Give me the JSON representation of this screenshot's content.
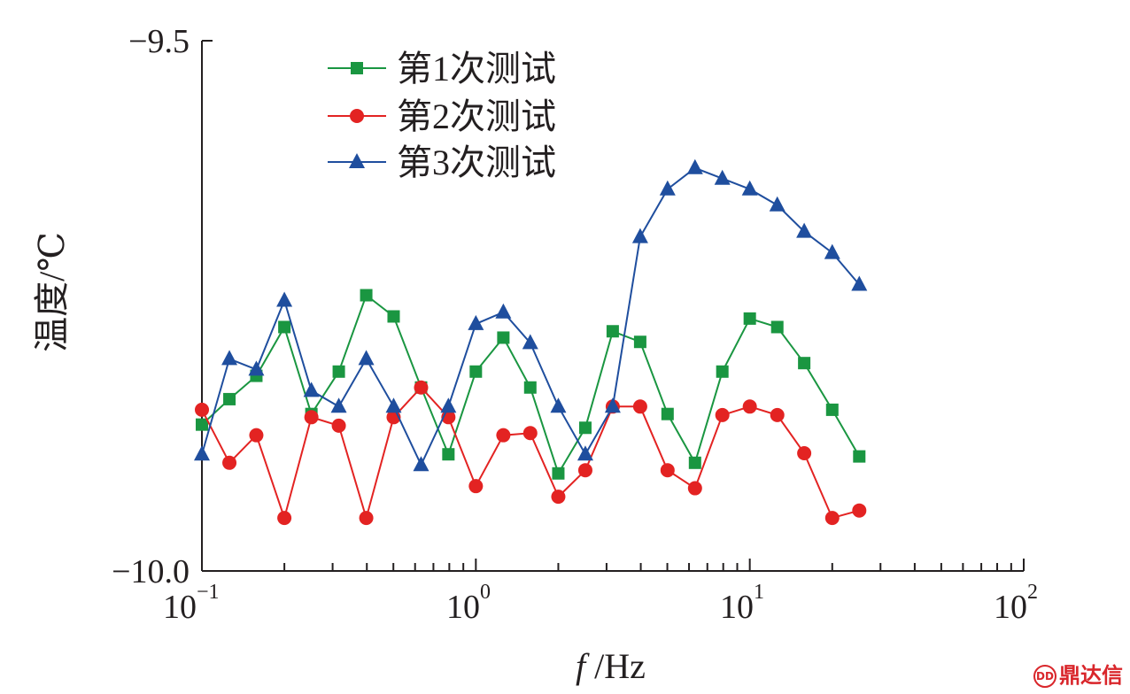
{
  "chart_data": {
    "type": "line",
    "x_scale": "log",
    "xlim": [
      0.1,
      100
    ],
    "ylim": [
      -10.0,
      -9.5
    ],
    "ylabel": "温度/℃",
    "xlabel_italic": "f",
    "xlabel_rest": " /Hz",
    "y_tick_labels": [
      "−9.5",
      "−10.0"
    ],
    "x_tick_labels": [
      {
        "base": "10",
        "exp": "−1"
      },
      {
        "base": "10",
        "exp": "0"
      },
      {
        "base": "10",
        "exp": "1"
      },
      {
        "base": "10",
        "exp": "2"
      }
    ],
    "legend_position": "top-left",
    "grid": false,
    "x": [
      0.1,
      0.126,
      0.158,
      0.2,
      0.251,
      0.316,
      0.398,
      0.501,
      0.631,
      0.794,
      1.0,
      1.26,
      1.58,
      2.0,
      2.51,
      3.16,
      3.98,
      5.01,
      6.31,
      7.94,
      10.0,
      12.6,
      15.8,
      20.0,
      25.1
    ],
    "series": [
      {
        "name": "第1次测试",
        "color": "#1a9641",
        "marker": "square",
        "values": [
          -9.862,
          -9.838,
          -9.816,
          -9.77,
          -9.852,
          -9.812,
          -9.74,
          -9.76,
          -9.827,
          -9.89,
          -9.812,
          -9.78,
          -9.827,
          -9.908,
          -9.865,
          -9.774,
          -9.784,
          -9.852,
          -9.898,
          -9.812,
          -9.762,
          -9.77,
          -9.804,
          -9.848,
          -9.892
        ]
      },
      {
        "name": "第2次测试",
        "color": "#e32322",
        "marker": "circle",
        "values": [
          -9.848,
          -9.898,
          -9.872,
          -9.95,
          -9.855,
          -9.863,
          -9.95,
          -9.855,
          -9.827,
          -9.855,
          -9.92,
          -9.872,
          -9.87,
          -9.93,
          -9.905,
          -9.845,
          -9.845,
          -9.905,
          -9.922,
          -9.853,
          -9.845,
          -9.853,
          -9.889,
          -9.95,
          -9.943
        ]
      },
      {
        "name": "第3次测试",
        "color": "#1f4e9e",
        "marker": "triangle",
        "values": [
          -9.89,
          -9.8,
          -9.81,
          -9.745,
          -9.83,
          -9.845,
          -9.8,
          -9.845,
          -9.9,
          -9.845,
          -9.767,
          -9.756,
          -9.785,
          -9.845,
          -9.89,
          -9.845,
          -9.685,
          -9.64,
          -9.62,
          -9.63,
          -9.64,
          -9.655,
          -9.68,
          -9.7,
          -9.73
        ]
      }
    ]
  },
  "watermark": {
    "logo": "DD",
    "text": "鼎达信"
  }
}
